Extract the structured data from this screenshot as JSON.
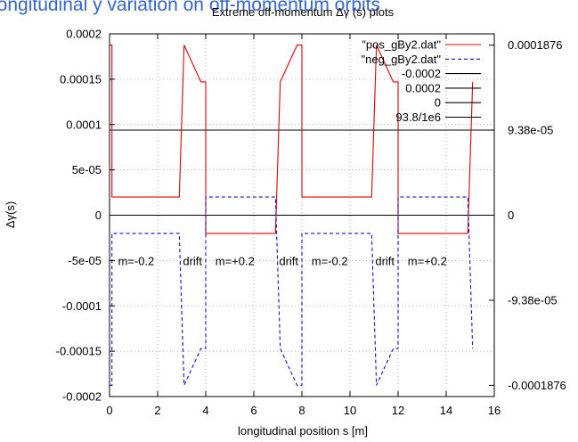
{
  "header": {
    "slide_title": "longitudinal  y variation on off-momentum orbits"
  },
  "chart_data": {
    "type": "line",
    "title": "Extreme off-momentum Δγ (s) plots",
    "xlabel": "longitudinal position s [m]",
    "ylabel": "Δγ(s)",
    "xlim": [
      0,
      16
    ],
    "ylim": [
      -0.0002,
      0.0002
    ],
    "x_ticks": [
      0,
      2,
      4,
      6,
      8,
      10,
      12,
      14,
      16
    ],
    "x_tick_labels": [
      "0",
      "2",
      "4",
      "6",
      "8",
      "10",
      "12",
      "14",
      "16"
    ],
    "y_ticks": [
      -0.0002,
      -0.00015,
      -0.0001,
      -5e-05,
      0,
      5e-05,
      0.0001,
      0.00015,
      0.0002
    ],
    "y_tick_labels": [
      "-0.0002",
      "-0.00015",
      "-0.0001",
      "-5e-05",
      "0",
      "5e-05",
      "0.0001",
      "0.00015",
      "0.0002"
    ],
    "y2_ticks": [
      0.0001876,
      9.38e-05,
      0,
      -9.38e-05,
      -0.0001876
    ],
    "y2_tick_labels": [
      "0.0001876",
      "9.38e-05",
      "0",
      "-9.38e-05",
      "-0.0001876"
    ],
    "grid": true,
    "legend_position": "top-right",
    "series": [
      {
        "name": "\"pos_gBy2.dat\"",
        "color": "#e00000",
        "dash": "solid",
        "x": [
          0,
          0.1,
          0.1,
          2.9,
          3.1,
          3.8,
          4.0,
          4.0,
          6.9,
          7.1,
          7.8,
          8.0,
          8.0,
          10.9,
          11.1,
          11.8,
          12.0,
          12.0,
          14.9,
          15.1
        ],
        "y": [
          0.0001876,
          0.0001876,
          2e-05,
          2e-05,
          0.0001876,
          0.000147,
          0.000147,
          -2e-05,
          -2e-05,
          0.000147,
          0.0001876,
          0.0001876,
          2e-05,
          2e-05,
          0.0001876,
          0.000147,
          0.000147,
          -2e-05,
          -2e-05,
          0.000147
        ]
      },
      {
        "name": "\"neg_gBy2.dat\"",
        "color": "#1010d0",
        "dash": "dashed",
        "x": [
          0,
          0.1,
          0.1,
          2.9,
          3.1,
          3.8,
          4.0,
          4.0,
          6.9,
          7.1,
          7.8,
          8.0,
          8.0,
          10.9,
          11.1,
          11.8,
          12.0,
          12.0,
          14.9,
          15.1
        ],
        "y": [
          -0.0001876,
          -0.0001876,
          -2e-05,
          -2e-05,
          -0.0001876,
          -0.000147,
          -0.000147,
          2e-05,
          2e-05,
          -0.000147,
          -0.0001876,
          -0.0001876,
          -2e-05,
          -2e-05,
          -0.0001876,
          -0.000147,
          -0.000147,
          2e-05,
          2e-05,
          -0.000147
        ]
      },
      {
        "name": "-0.0002",
        "color": "#000000",
        "dash": "solid",
        "constant": -0.0002
      },
      {
        "name": "0.0002",
        "color": "#000000",
        "dash": "solid",
        "constant": 0.0002
      },
      {
        "name": "0",
        "color": "#000000",
        "dash": "solid",
        "constant": 0
      },
      {
        "name": "93.8/1e6",
        "color": "#000000",
        "dash": "solid",
        "constant": 9.38e-05
      }
    ],
    "annotations": [
      {
        "text": "m=-0.2",
        "x": 0.35,
        "y": -5e-05
      },
      {
        "text": "drift",
        "x": 3.05,
        "y": -5e-05
      },
      {
        "text": "m=+0.2",
        "x": 4.4,
        "y": -5e-05
      },
      {
        "text": "drift",
        "x": 7.05,
        "y": -5e-05
      },
      {
        "text": "m=-0.2",
        "x": 8.4,
        "y": -5e-05
      },
      {
        "text": "drift",
        "x": 11.05,
        "y": -5e-05
      },
      {
        "text": "m=+0.2",
        "x": 12.4,
        "y": -5e-05
      }
    ]
  }
}
